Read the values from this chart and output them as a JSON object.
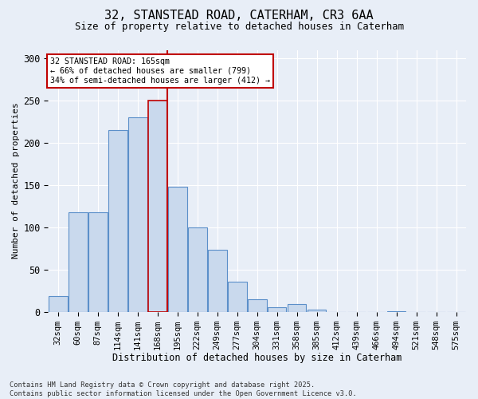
{
  "title": "32, STANSTEAD ROAD, CATERHAM, CR3 6AA",
  "subtitle": "Size of property relative to detached houses in Caterham",
  "xlabel": "Distribution of detached houses by size in Caterham",
  "ylabel": "Number of detached properties",
  "bins": [
    "32sqm",
    "60sqm",
    "87sqm",
    "114sqm",
    "141sqm",
    "168sqm",
    "195sqm",
    "222sqm",
    "249sqm",
    "277sqm",
    "304sqm",
    "331sqm",
    "358sqm",
    "385sqm",
    "412sqm",
    "439sqm",
    "466sqm",
    "494sqm",
    "521sqm",
    "548sqm",
    "575sqm"
  ],
  "values": [
    19,
    118,
    118,
    215,
    230,
    250,
    148,
    100,
    73,
    36,
    15,
    5,
    9,
    2,
    0,
    0,
    0,
    1,
    0,
    0,
    0
  ],
  "bar_color": "#c9d9ed",
  "bar_edge_color": "#5b8fc9",
  "highlight_bar_index": 5,
  "highlight_edge_color": "#c00000",
  "vline_color": "#c00000",
  "annotation_text_line1": "32 STANSTEAD ROAD: 165sqm",
  "annotation_text_line2": "← 66% of detached houses are smaller (799)",
  "annotation_text_line3": "34% of semi-detached houses are larger (412) →",
  "annotation_box_edge_color": "#c00000",
  "background_color": "#e8eef7",
  "footer_line1": "Contains HM Land Registry data © Crown copyright and database right 2025.",
  "footer_line2": "Contains public sector information licensed under the Open Government Licence v3.0.",
  "ylim": [
    0,
    310
  ],
  "yticks": [
    0,
    50,
    100,
    150,
    200,
    250,
    300
  ]
}
